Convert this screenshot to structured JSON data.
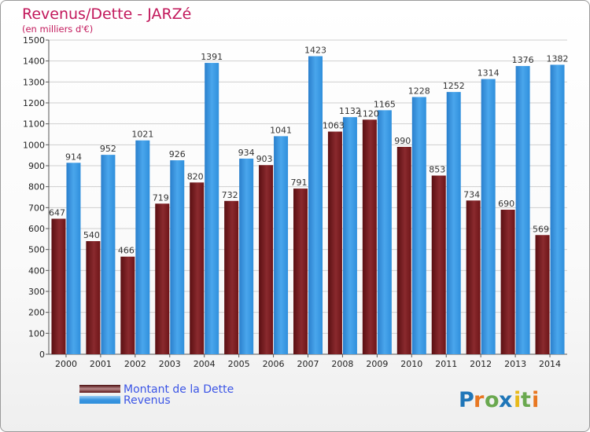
{
  "chart_data": {
    "type": "bar",
    "title": "Revenus/Dette - JARZé",
    "subtitle": "(en milliers d'€)",
    "categories": [
      "2000",
      "2001",
      "2002",
      "2003",
      "2004",
      "2005",
      "2006",
      "2007",
      "2008",
      "2009",
      "2010",
      "2011",
      "2012",
      "2013",
      "2014"
    ],
    "series": [
      {
        "name": "Montant de la Dette",
        "color": "#7a1a1f",
        "values": [
          647,
          540,
          466,
          719,
          820,
          732,
          903,
          791,
          1063,
          1120,
          990,
          853,
          734,
          690,
          569
        ]
      },
      {
        "name": "Revenus",
        "color": "#2f8fdc",
        "values": [
          914,
          952,
          1021,
          926,
          1391,
          934,
          1041,
          1423,
          1132,
          1165,
          1228,
          1252,
          1314,
          1376,
          1382
        ]
      }
    ],
    "ylim": [
      0,
      1500
    ],
    "yticks": [
      0,
      100,
      200,
      300,
      400,
      500,
      600,
      700,
      800,
      900,
      1000,
      1100,
      1200,
      1300,
      1400,
      1500
    ],
    "grid": true,
    "legend": "bottom-left"
  },
  "logo": {
    "text": "Proxiti"
  }
}
